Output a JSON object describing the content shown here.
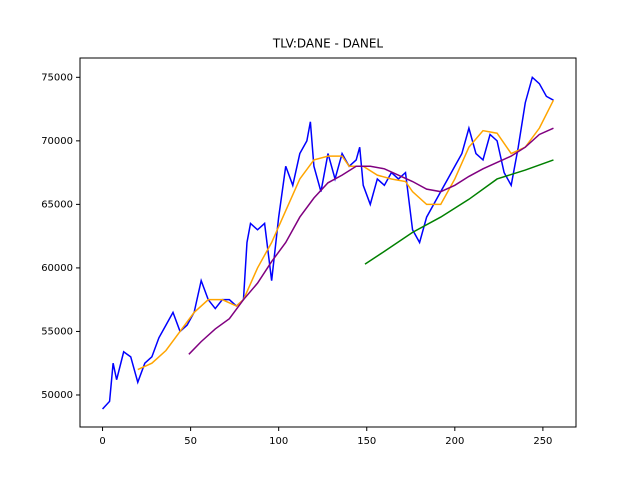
{
  "chart_data": {
    "type": "line",
    "title": "TLV:DANE - DANEL",
    "xlim": [
      -12.8,
      268.8
    ],
    "xticks": [
      0,
      50,
      100,
      150,
      200,
      250
    ],
    "ylim": [
      47480,
      76520
    ],
    "yticks": [
      50000,
      55000,
      60000,
      65000,
      70000,
      75000
    ],
    "grid": false,
    "series": [
      {
        "color": "#0000ff",
        "x": [
          0,
          4,
          6,
          8,
          12,
          16,
          20,
          24,
          28,
          32,
          36,
          40,
          44,
          48,
          52,
          56,
          60,
          64,
          68,
          72,
          76,
          80,
          82,
          84,
          88,
          92,
          96,
          100,
          104,
          108,
          112,
          116,
          118,
          120,
          124,
          128,
          132,
          136,
          140,
          144,
          146,
          148,
          152,
          156,
          160,
          164,
          168,
          172,
          176,
          180,
          184,
          188,
          192,
          196,
          200,
          204,
          208,
          212,
          216,
          220,
          224,
          228,
          232,
          236,
          240,
          244,
          248,
          252,
          256
        ],
        "values": [
          48900,
          49500,
          52500,
          51200,
          53400,
          53000,
          51000,
          52500,
          53000,
          54500,
          55500,
          56500,
          55000,
          55500,
          56500,
          59000,
          57500,
          56800,
          57500,
          57500,
          57000,
          57500,
          62000,
          63500,
          63000,
          63500,
          59000,
          64000,
          68000,
          66500,
          69000,
          70000,
          71500,
          68000,
          66000,
          69000,
          67000,
          69000,
          68000,
          68500,
          69500,
          66500,
          65000,
          67000,
          66500,
          67500,
          67000,
          67500,
          63000,
          62000,
          64000,
          65000,
          66000,
          67000,
          68000,
          69000,
          71000,
          69000,
          68500,
          70500,
          70000,
          67500,
          66500,
          69500,
          73000,
          75000,
          74500,
          73500,
          73200
        ]
      },
      {
        "color": "#ffa500",
        "x": [
          20,
          28,
          36,
          44,
          52,
          60,
          68,
          76,
          80,
          88,
          96,
          104,
          112,
          120,
          128,
          136,
          140,
          148,
          156,
          164,
          172,
          176,
          184,
          192,
          200,
          208,
          216,
          224,
          232,
          240,
          248,
          256
        ],
        "values": [
          52000,
          52500,
          53500,
          55000,
          56500,
          57500,
          57500,
          57000,
          57500,
          60000,
          62000,
          64500,
          67000,
          68500,
          68800,
          68800,
          68000,
          68000,
          67300,
          67000,
          66800,
          66000,
          65000,
          65000,
          67000,
          69500,
          70800,
          70600,
          69000,
          69500,
          71000,
          73200
        ]
      },
      {
        "color": "#800080",
        "x": [
          49,
          56,
          64,
          72,
          80,
          88,
          96,
          104,
          112,
          120,
          128,
          136,
          144,
          152,
          160,
          168,
          176,
          184,
          192,
          200,
          208,
          216,
          224,
          232,
          240,
          248,
          256
        ],
        "values": [
          53200,
          54200,
          55200,
          56000,
          57500,
          58800,
          60500,
          62000,
          64000,
          65500,
          66700,
          67300,
          68000,
          68000,
          67800,
          67300,
          66800,
          66200,
          66000,
          66500,
          67200,
          67800,
          68300,
          68800,
          69500,
          70500,
          71000
        ]
      },
      {
        "color": "#008000",
        "x": [
          149,
          160,
          176,
          192,
          208,
          224,
          240,
          256
        ],
        "values": [
          60300,
          61300,
          62800,
          64000,
          65400,
          67000,
          67700,
          68500
        ]
      }
    ]
  }
}
